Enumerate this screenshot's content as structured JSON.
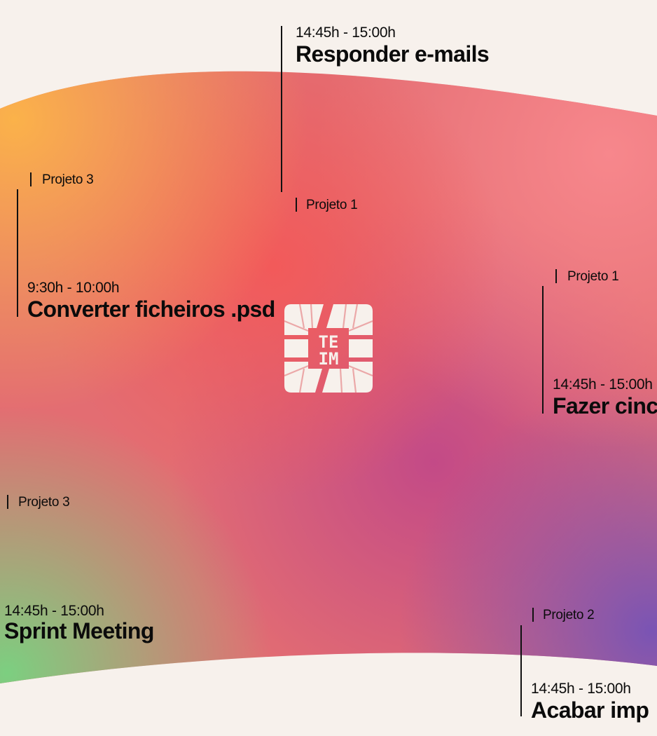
{
  "logo": {
    "name": "teim-logo",
    "line1": "TE",
    "line2": "IM"
  },
  "colors": {
    "background": "#f7f1ec",
    "gradient_orange": "#fbb24a",
    "gradient_red": "#f25a5a",
    "gradient_pink": "#f7878c",
    "gradient_magenta": "#c34a87",
    "gradient_purple": "#7a54b4",
    "gradient_green": "#7ccf80",
    "ink": "#0b0b0b"
  },
  "tasks": [
    {
      "id": "responder",
      "project": "Projeto 1",
      "time": "14:45h - 15:00h",
      "title": "Responder e-mails"
    },
    {
      "id": "converter",
      "project": "Projeto 3",
      "time": "9:30h - 10:00h",
      "title": "Converter ficheiros .psd"
    },
    {
      "id": "fazer",
      "project": "Projeto 1",
      "time": "14:45h - 15:00h",
      "title": "Fazer cinc"
    },
    {
      "id": "sprint",
      "project": "Projeto 3",
      "time": "14:45h - 15:00h",
      "title": "Sprint Meeting"
    },
    {
      "id": "acabar",
      "project": "Projeto 2",
      "time": "14:45h - 15:00h",
      "title": "Acabar imp"
    }
  ]
}
